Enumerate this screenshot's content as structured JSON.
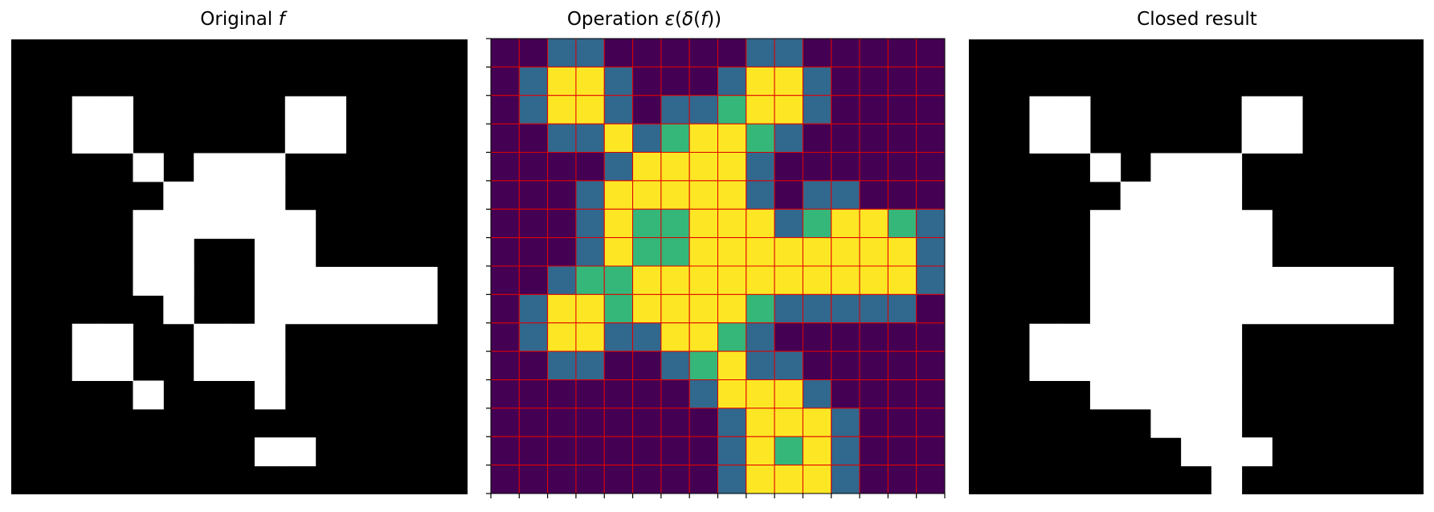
{
  "titles": {
    "left_prefix": "Original ",
    "left_var": "f",
    "middle_prefix": "Operation ",
    "middle_eps": "ε",
    "middle_open": "(",
    "middle_delta": "δ",
    "middle_open2": "(",
    "middle_f": "f",
    "middle_close": "))",
    "right": "Closed result"
  },
  "colors": {
    "binary_on": "#ffffff",
    "binary_off": "#000000",
    "level_0": "#440154",
    "level_1": "#31688e",
    "level_2": "#35b779",
    "level_3": "#fde725",
    "grid_line": "#e00000"
  },
  "original_f": [
    "000000000000000",
    "000000000000000",
    "001100000110000",
    "001100000110000",
    "000010111000000",
    "000001111000000",
    "000011111100000",
    "000011001100000",
    "000011001111110",
    "000001001111110",
    "001100111000000",
    "001100111000000",
    "000010001000000",
    "000000000000000",
    "000000001100000",
    "000000000000000"
  ],
  "operation_grid": [
    "0011000001100000",
    "0133100013310000",
    "0133101123310000",
    "0011312332100000",
    "0000133331000000",
    "0001333331011000",
    "0001322333123321",
    "0001322333333331",
    "0012233333333331",
    "0133233332111110",
    "0133113321000000",
    "0011001231100000",
    "0000000133310000",
    "0000000013331000",
    "0000000013231000",
    "0000000013331000"
  ],
  "closed_result": [
    "000000000000000",
    "000000000000000",
    "001100000110000",
    "001100000110000",
    "000010111000000",
    "000001111000000",
    "000011111100000",
    "000011111100000",
    "000011111111110",
    "000011111111110",
    "001111111000000",
    "001111111000000",
    "000011111000000",
    "000000111000000",
    "000000011100000",
    "000000001000000"
  ]
}
